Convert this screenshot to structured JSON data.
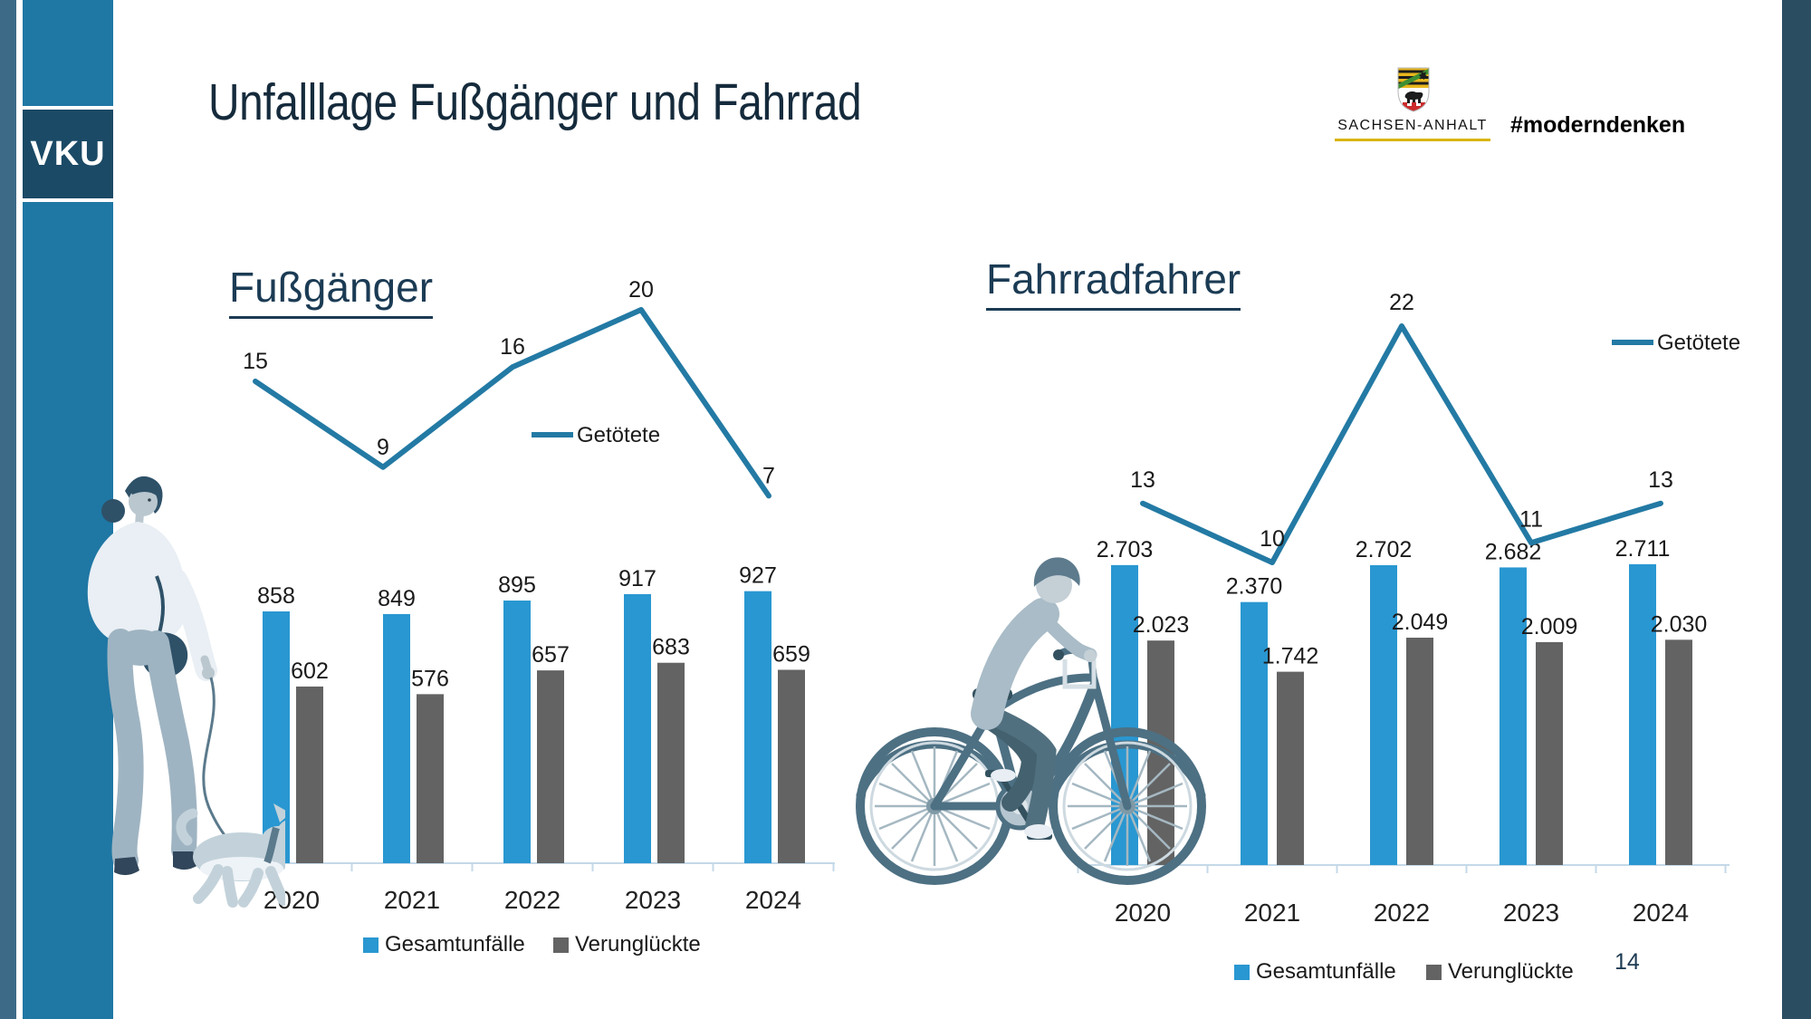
{
  "sidebar": {
    "logo_label": "VKU"
  },
  "header": {
    "title": "Unfalllage Fußgänger und Fahrrad"
  },
  "branding": {
    "region_name": "SACHSEN-ANHALT",
    "hashtag": "#moderndenken"
  },
  "page": {
    "number": "14"
  },
  "colors": {
    "bar_blue": "#2997d1",
    "bar_gray": "#636363",
    "line_teal": "#237aa4",
    "heading_navy": "#1b3b54",
    "axis_light": "#c5d9e8"
  },
  "chart_data": [
    {
      "type": "bar",
      "title": "Fußgänger",
      "categories": [
        "2020",
        "2021",
        "2022",
        "2023",
        "2024"
      ],
      "series": [
        {
          "name": "Gesamtunfälle",
          "type": "bar",
          "color": "#2997d1",
          "values": [
            858,
            849,
            895,
            917,
            927
          ],
          "labels": [
            "858",
            "849",
            "895",
            "917",
            "927"
          ]
        },
        {
          "name": "Verunglückte",
          "type": "bar",
          "color": "#636363",
          "values": [
            602,
            576,
            657,
            683,
            659
          ],
          "labels": [
            "602",
            "576",
            "657",
            "683",
            "659"
          ]
        },
        {
          "name": "Getötete",
          "type": "line",
          "color": "#237aa4",
          "values": [
            15,
            9,
            16,
            20,
            7
          ],
          "labels": [
            "15",
            "9",
            "16",
            "20",
            "7"
          ]
        }
      ],
      "legend_bottom": [
        "Gesamtunfälle",
        "Verunglückte"
      ],
      "legend_line": "Getötete",
      "ylim_bars": [
        0,
        1000
      ],
      "ylim_line": [
        0,
        25
      ],
      "grid": false,
      "legend_position": "bottom"
    },
    {
      "type": "bar",
      "title": "Fahrradfahrer",
      "categories": [
        "2020",
        "2021",
        "2022",
        "2023",
        "2024"
      ],
      "series": [
        {
          "name": "Gesamtunfälle",
          "type": "bar",
          "color": "#2997d1",
          "values": [
            2703,
            2370,
            2702,
            2682,
            2711
          ],
          "labels": [
            "2.703",
            "2.370",
            "2.702",
            "2.682",
            "2.711"
          ]
        },
        {
          "name": "Verunglückte",
          "type": "bar",
          "color": "#636363",
          "values": [
            2023,
            1742,
            2049,
            2009,
            2030
          ],
          "labels": [
            "2.023",
            "1.742",
            "2.049",
            "2.009",
            "2.030"
          ]
        },
        {
          "name": "Getötete",
          "type": "line",
          "color": "#237aa4",
          "values": [
            13,
            10,
            22,
            11,
            13
          ],
          "labels": [
            "13",
            "10",
            "22",
            "11",
            "13"
          ]
        }
      ],
      "legend_bottom": [
        "Gesamtunfälle",
        "Verunglückte"
      ],
      "legend_line": "Getötete",
      "ylim_bars": [
        0,
        3000
      ],
      "ylim_line": [
        0,
        25
      ],
      "grid": false,
      "legend_position": "bottom"
    }
  ]
}
